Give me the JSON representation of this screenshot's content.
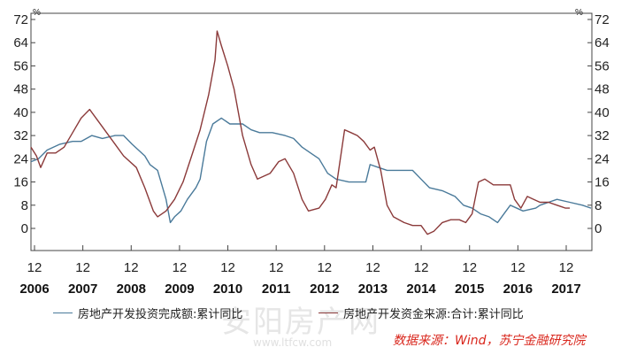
{
  "chart_data": {
    "type": "line",
    "y_unit_left": "%",
    "y_unit_right": "%",
    "ylim": [
      -8,
      72
    ],
    "yticks": [
      0,
      8,
      16,
      24,
      32,
      40,
      48,
      56,
      64,
      72
    ],
    "x_month_labels": [
      "12",
      "12",
      "12",
      "12",
      "12",
      "12",
      "12",
      "12",
      "12",
      "12",
      "12",
      "12"
    ],
    "x_year_labels": [
      "2006",
      "2007",
      "2008",
      "2009",
      "2010",
      "2011",
      "2012",
      "2013",
      "2014",
      "2015",
      "2016",
      "2017"
    ],
    "grid": false,
    "legend_position": "bottom",
    "series": [
      {
        "name": "房地产开发投资完成额:累计同比",
        "color": "#4a7a9a",
        "points": [
          [
            2005.92,
            23
          ],
          [
            2006.1,
            24
          ],
          [
            2006.3,
            27
          ],
          [
            2006.6,
            29
          ],
          [
            2006.9,
            30
          ],
          [
            2007.1,
            30
          ],
          [
            2007.35,
            32
          ],
          [
            2007.6,
            31
          ],
          [
            2007.9,
            32
          ],
          [
            2008.1,
            32
          ],
          [
            2008.3,
            29
          ],
          [
            2008.6,
            25
          ],
          [
            2008.72,
            22
          ],
          [
            2008.9,
            20
          ],
          [
            2009.1,
            10
          ],
          [
            2009.2,
            2
          ],
          [
            2009.3,
            4
          ],
          [
            2009.45,
            6
          ],
          [
            2009.6,
            10
          ],
          [
            2009.8,
            14
          ],
          [
            2009.9,
            17
          ],
          [
            2010.05,
            30
          ],
          [
            2010.2,
            36
          ],
          [
            2010.4,
            38
          ],
          [
            2010.6,
            36
          ],
          [
            2010.9,
            36
          ],
          [
            2011.1,
            34
          ],
          [
            2011.3,
            33
          ],
          [
            2011.6,
            33
          ],
          [
            2011.9,
            32
          ],
          [
            2012.1,
            31
          ],
          [
            2012.3,
            28
          ],
          [
            2012.5,
            26
          ],
          [
            2012.7,
            24
          ],
          [
            2012.9,
            19
          ],
          [
            2013.1,
            17
          ],
          [
            2013.4,
            16
          ],
          [
            2013.6,
            16
          ],
          [
            2013.8,
            16
          ],
          [
            2013.9,
            22
          ],
          [
            2014.1,
            21
          ],
          [
            2014.3,
            20
          ],
          [
            2014.5,
            20
          ],
          [
            2014.7,
            20
          ],
          [
            2014.9,
            20
          ],
          [
            2015.1,
            17
          ],
          [
            2015.3,
            14
          ],
          [
            2015.6,
            13
          ],
          [
            2015.9,
            11
          ],
          [
            2016.1,
            8
          ],
          [
            2016.3,
            7
          ],
          [
            2016.5,
            5
          ],
          [
            2016.7,
            4
          ],
          [
            2016.9,
            2
          ],
          [
            2017.05,
            5
          ],
          [
            2017.2,
            8
          ],
          [
            2017.5,
            6
          ],
          [
            2017.8,
            7
          ],
          [
            2017.9,
            8
          ],
          [
            2018.1,
            9
          ],
          [
            2018.3,
            10
          ],
          [
            2018.6,
            9
          ],
          [
            2018.9,
            8
          ],
          [
            2019.1,
            7
          ]
        ]
      },
      {
        "name": "房地产开发资金来源:合计:累计同比",
        "color": "#8b3a3a",
        "points": [
          [
            2005.92,
            28
          ],
          [
            2006.05,
            25
          ],
          [
            2006.15,
            21
          ],
          [
            2006.3,
            26
          ],
          [
            2006.5,
            26
          ],
          [
            2006.7,
            28
          ],
          [
            2006.9,
            33
          ],
          [
            2007.1,
            38
          ],
          [
            2007.3,
            41
          ],
          [
            2007.5,
            37
          ],
          [
            2007.7,
            33
          ],
          [
            2007.9,
            29
          ],
          [
            2008.1,
            25
          ],
          [
            2008.4,
            21
          ],
          [
            2008.6,
            14
          ],
          [
            2008.8,
            6
          ],
          [
            2008.9,
            4
          ],
          [
            2009.1,
            6
          ],
          [
            2009.3,
            10
          ],
          [
            2009.5,
            16
          ],
          [
            2009.7,
            25
          ],
          [
            2009.9,
            34
          ],
          [
            2010.1,
            46
          ],
          [
            2010.25,
            58
          ],
          [
            2010.3,
            68
          ],
          [
            2010.4,
            63
          ],
          [
            2010.55,
            56
          ],
          [
            2010.7,
            48
          ],
          [
            2010.9,
            32
          ],
          [
            2011.1,
            22
          ],
          [
            2011.25,
            17
          ],
          [
            2011.4,
            18
          ],
          [
            2011.55,
            19
          ],
          [
            2011.75,
            23
          ],
          [
            2011.9,
            24
          ],
          [
            2012.1,
            19
          ],
          [
            2012.3,
            10
          ],
          [
            2012.45,
            6
          ],
          [
            2012.7,
            7
          ],
          [
            2012.85,
            10
          ],
          [
            2013.0,
            15
          ],
          [
            2013.1,
            14
          ],
          [
            2013.3,
            34
          ],
          [
            2013.45,
            33
          ],
          [
            2013.6,
            32
          ],
          [
            2013.75,
            30
          ],
          [
            2013.9,
            27
          ],
          [
            2014.0,
            28
          ],
          [
            2014.15,
            20
          ],
          [
            2014.3,
            8
          ],
          [
            2014.45,
            4
          ],
          [
            2014.7,
            2
          ],
          [
            2014.9,
            1
          ],
          [
            2015.1,
            1
          ],
          [
            2015.25,
            -2
          ],
          [
            2015.4,
            -1
          ],
          [
            2015.6,
            2
          ],
          [
            2015.8,
            3
          ],
          [
            2016.0,
            3
          ],
          [
            2016.15,
            2
          ],
          [
            2016.3,
            5
          ],
          [
            2016.45,
            16
          ],
          [
            2016.6,
            17
          ],
          [
            2016.8,
            15
          ],
          [
            2017.0,
            15
          ],
          [
            2017.2,
            15
          ],
          [
            2017.3,
            10
          ],
          [
            2017.45,
            7
          ],
          [
            2017.6,
            11
          ],
          [
            2017.75,
            10
          ],
          [
            2017.9,
            9
          ],
          [
            2018.1,
            9
          ],
          [
            2018.3,
            8
          ],
          [
            2018.5,
            7
          ],
          [
            2018.6,
            7
          ]
        ]
      }
    ]
  },
  "source_note": "数据来源：Wind，苏宁金融研究院",
  "watermark": "安阳房产网",
  "watermark_url": "www.ltfcw.com"
}
